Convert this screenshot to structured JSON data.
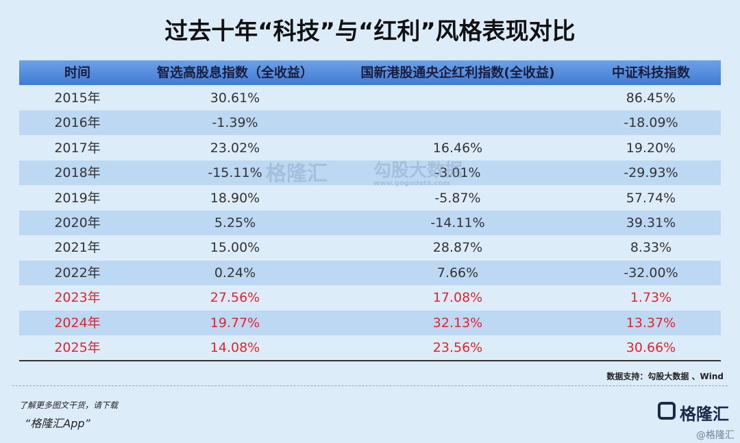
{
  "header": {
    "title": "过去十年“科技”与“红利”风格表现对比"
  },
  "table": {
    "columns": [
      "时间",
      "智选高股息指数（全收益）",
      "国新港股通央企红利指数(全收益)",
      "中证科技指数"
    ],
    "rows": [
      [
        "2015年",
        "30.61%",
        null,
        "86.45%"
      ],
      [
        "2016年",
        "-1.39%",
        null,
        "-18.09%"
      ],
      [
        "2017年",
        "23.02%",
        "16.46%",
        "19.20%"
      ],
      [
        "2018年",
        "-15.11%",
        "-3.01%",
        "-29.93%"
      ],
      [
        "2019年",
        "18.90%",
        "-5.87%",
        "57.74%"
      ],
      [
        "2020年",
        "5.25%",
        "-14.11%",
        "39.31%"
      ],
      [
        "2021年",
        "15.00%",
        "28.87%",
        "8.33%"
      ],
      [
        "2022年",
        "0.24%",
        "7.66%",
        "-32.00%"
      ],
      [
        "2023年",
        "27.56%",
        "17.08%",
        "1.73%"
      ],
      [
        "2024年",
        "19.77%",
        "32.13%",
        "13.37%"
      ],
      [
        "2025年",
        "14.08%",
        "23.56%",
        "30.66%"
      ]
    ],
    "highlight_rows": [
      8,
      9,
      10
    ],
    "highlight_color": "#e0242b"
  },
  "source": "数据支持：勾股大数据 、Wind",
  "footer": {
    "line1": "了解更多图文干货，请下载",
    "line2": "“格隆汇App”"
  },
  "logo": "格隆汇",
  "watermarks": [
    "格隆汇",
    "勾股大数据",
    "www.gogudata.com",
    "@格隆汇"
  ]
}
